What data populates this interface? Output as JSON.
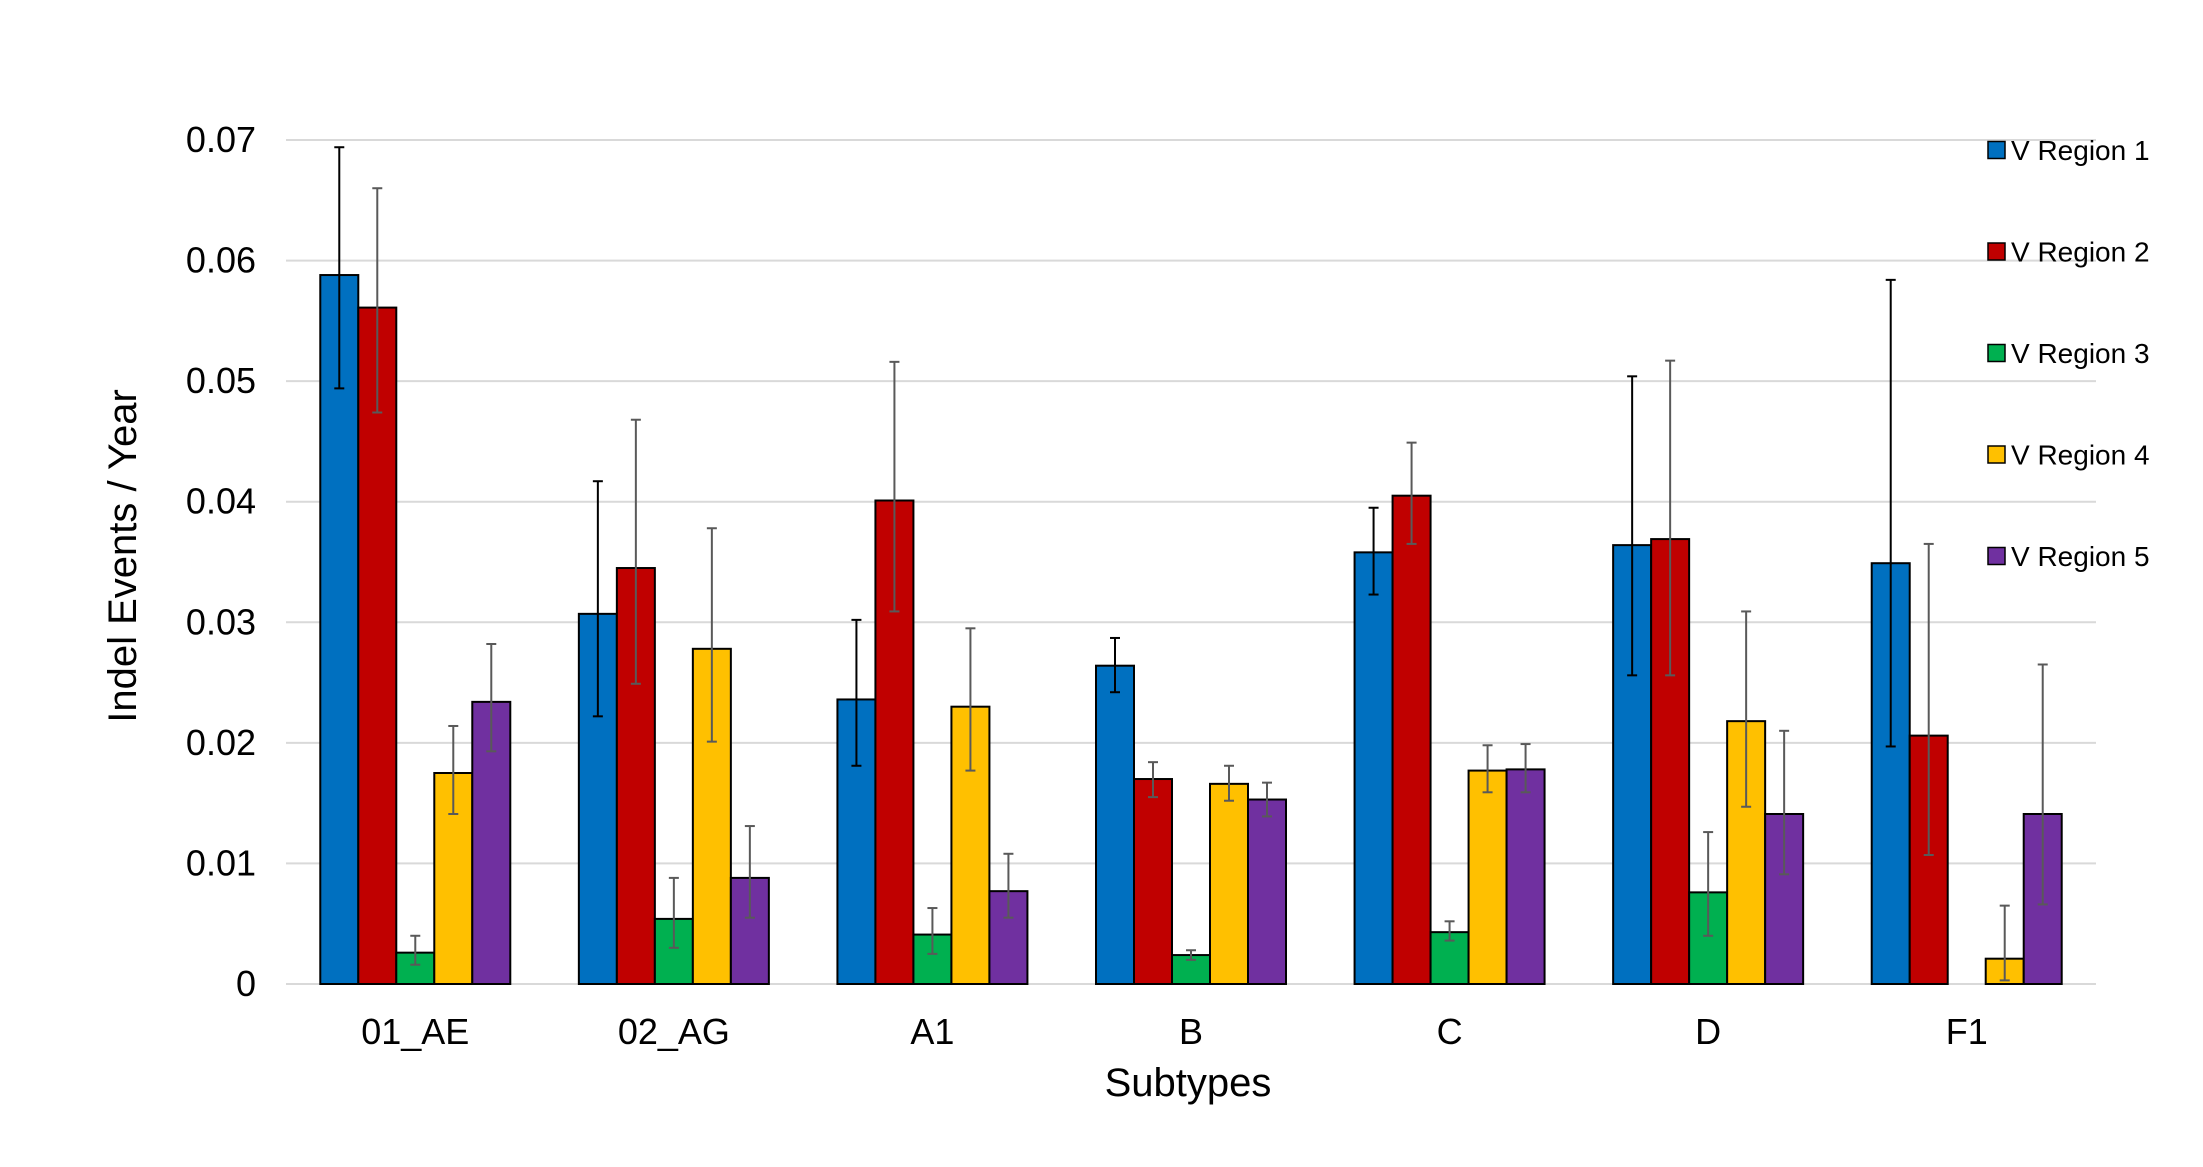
{
  "chart_data": {
    "type": "bar",
    "title": "",
    "xlabel": "Subtypes",
    "ylabel": "Indel Events / Year",
    "ylim": [
      0,
      0.07
    ],
    "yticks": [
      0,
      0.01,
      0.02,
      0.03,
      0.04,
      0.05,
      0.06,
      0.07
    ],
    "ytick_labels": [
      "0",
      "0.01",
      "0.02",
      "0.03",
      "0.04",
      "0.05",
      "0.06",
      "0.07"
    ],
    "grid": true,
    "legend_position": "right",
    "categories": [
      "01_AE",
      "02_AG",
      "A1",
      "B",
      "C",
      "D",
      "F1"
    ],
    "series": [
      {
        "name": "V Region 1",
        "color": "#0070c0",
        "values": [
          0.0588,
          0.0307,
          0.0236,
          0.0264,
          0.0358,
          0.0364,
          0.0349
        ],
        "err_low": [
          0.0494,
          0.0222,
          0.0181,
          0.0242,
          0.0323,
          0.0256,
          0.0197
        ],
        "err_high": [
          0.0694,
          0.0417,
          0.0302,
          0.0287,
          0.0395,
          0.0504,
          0.0584
        ],
        "err_color": "#000000"
      },
      {
        "name": "V Region 2",
        "color": "#c00000",
        "values": [
          0.0561,
          0.0345,
          0.0401,
          0.017,
          0.0405,
          0.0369,
          0.0206
        ],
        "err_low": [
          0.0474,
          0.0249,
          0.0309,
          0.0155,
          0.0365,
          0.0256,
          0.0107
        ],
        "err_high": [
          0.066,
          0.0468,
          0.0516,
          0.0184,
          0.0449,
          0.0517,
          0.0365
        ],
        "err_color": "#595959"
      },
      {
        "name": "V Region 3",
        "color": "#00b050",
        "values": [
          0.0026,
          0.0054,
          0.0041,
          0.0024,
          0.0043,
          0.0076,
          null
        ],
        "err_low": [
          0.0016,
          0.003,
          0.0025,
          0.002,
          0.0036,
          0.004,
          null
        ],
        "err_high": [
          0.004,
          0.0088,
          0.0063,
          0.0028,
          0.0052,
          0.0126,
          null
        ],
        "err_color": "#595959"
      },
      {
        "name": "V Region 4",
        "color": "#ffc000",
        "values": [
          0.0175,
          0.0278,
          0.023,
          0.0166,
          0.0177,
          0.0218,
          0.0021
        ],
        "err_low": [
          0.0141,
          0.0201,
          0.0177,
          0.0152,
          0.0159,
          0.0147,
          0.0003
        ],
        "err_high": [
          0.0214,
          0.0378,
          0.0295,
          0.0181,
          0.0198,
          0.0309,
          0.0065
        ],
        "err_color": "#595959"
      },
      {
        "name": "V Region 5",
        "color": "#7030a0",
        "values": [
          0.0234,
          0.0088,
          0.0077,
          0.0153,
          0.0178,
          0.0141,
          0.0141
        ],
        "err_low": [
          0.0193,
          0.0055,
          0.0055,
          0.0139,
          0.0159,
          0.0091,
          0.0066
        ],
        "err_high": [
          0.0282,
          0.0131,
          0.0108,
          0.0167,
          0.0199,
          0.021,
          0.0265
        ],
        "err_color": "#595959"
      }
    ]
  }
}
